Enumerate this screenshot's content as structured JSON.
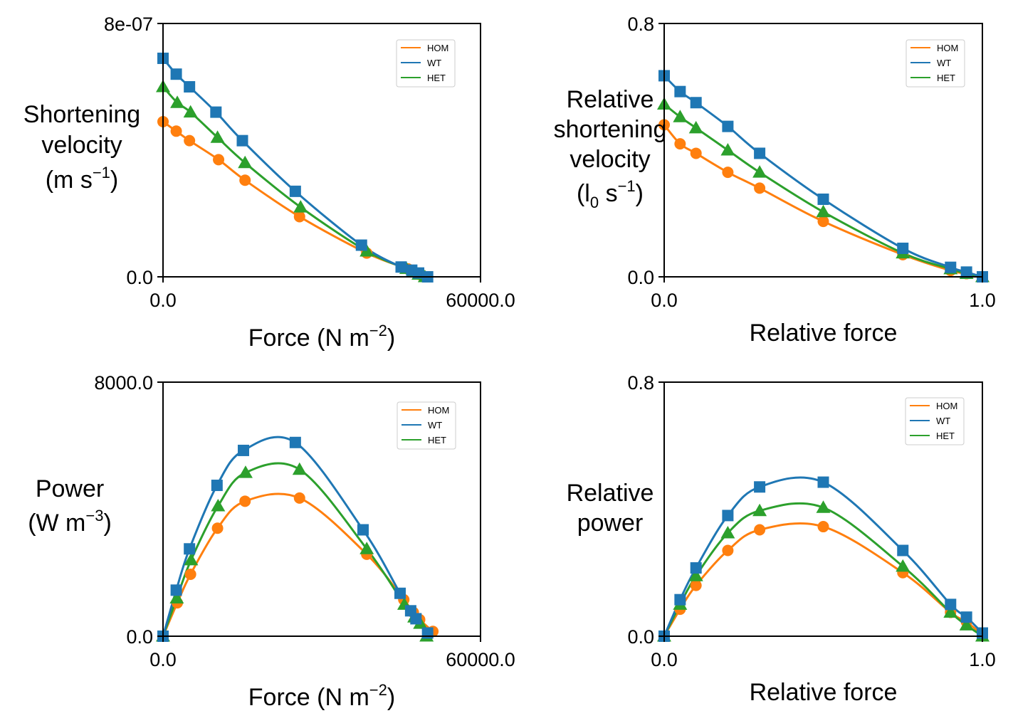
{
  "colors": {
    "HOM": "#ff7f0e",
    "WT": "#1f77b4",
    "HET": "#2ca02c",
    "axis": "#000000"
  },
  "markers": {
    "HOM": "circle",
    "WT": "square",
    "HET": "triangle"
  },
  "legend_position": "upper-right",
  "chart_data": [
    {
      "id": "p1",
      "type": "line",
      "xlabel": "Force (N m",
      "xlabel_sup": "−2",
      "xlabel_end": ")",
      "ylabel_lines": [
        "Shortening",
        "velocity"
      ],
      "ylabel_unit": "(m s",
      "ylabel_unit_sup": "−1",
      "ylabel_unit_end": ")",
      "xlim": [
        0,
        60000
      ],
      "ylim": [
        0,
        8e-07
      ],
      "xticks": [
        "0.0",
        "60000.0"
      ],
      "yticks": [
        "0.0",
        "8e-07"
      ],
      "series": [
        {
          "name": "HOM",
          "x": [
            0,
            2500,
            5000,
            10500,
            15500,
            25800,
            38500,
            46300,
            47400,
            48400,
            50000
          ],
          "y": [
            4.9e-07,
            4.6e-07,
            4.3e-07,
            3.7e-07,
            3.05e-07,
            1.9e-07,
            7.5e-08,
            2.5e-08,
            1.6e-08,
            8e-09,
            0
          ]
        },
        {
          "name": "WT",
          "x": [
            0,
            2500,
            5000,
            10000,
            15000,
            25000,
            37500,
            45000,
            47000,
            48300,
            50000
          ],
          "y": [
            6.9e-07,
            6.4e-07,
            6e-07,
            5.2e-07,
            4.3e-07,
            2.7e-07,
            1e-07,
            3.1e-08,
            2.1e-08,
            1.2e-08,
            0
          ]
        },
        {
          "name": "HET",
          "x": [
            0,
            2700,
            5200,
            10300,
            15500,
            26000,
            38500,
            46000,
            47300,
            48300,
            49500
          ],
          "y": [
            6e-07,
            5.5e-07,
            5.2e-07,
            4.4e-07,
            3.6e-07,
            2.2e-07,
            8.1e-08,
            2.6e-08,
            1.6e-08,
            8e-09,
            0
          ]
        }
      ]
    },
    {
      "id": "p2",
      "type": "line",
      "xlabel": "Relative force",
      "xlabel_sup": "",
      "xlabel_end": "",
      "ylabel_lines": [
        "Relative",
        "shortening",
        "velocity"
      ],
      "ylabel_unit": "(l",
      "ylabel_unit_sub": "0",
      "ylabel_unit_mid": " s",
      "ylabel_unit_sup": "−1",
      "ylabel_unit_end": ")",
      "xlim": [
        0,
        1
      ],
      "ylim": [
        0,
        0.8
      ],
      "xticks": [
        "0.0",
        "1.0"
      ],
      "yticks": [
        "0.0",
        "0.8"
      ],
      "series": [
        {
          "name": "HOM",
          "x": [
            0,
            0.05,
            0.1,
            0.2,
            0.3,
            0.5,
            0.75,
            0.9,
            0.95,
            1.0
          ],
          "y": [
            0.48,
            0.42,
            0.39,
            0.33,
            0.28,
            0.175,
            0.07,
            0.02,
            0.01,
            0
          ]
        },
        {
          "name": "WT",
          "x": [
            0,
            0.05,
            0.1,
            0.2,
            0.3,
            0.5,
            0.75,
            0.9,
            0.95,
            1.0
          ],
          "y": [
            0.635,
            0.585,
            0.55,
            0.475,
            0.39,
            0.245,
            0.09,
            0.03,
            0.015,
            0
          ]
        },
        {
          "name": "HET",
          "x": [
            0,
            0.05,
            0.1,
            0.2,
            0.3,
            0.5,
            0.75,
            0.9,
            0.95,
            1.0
          ],
          "y": [
            0.545,
            0.505,
            0.47,
            0.4,
            0.33,
            0.205,
            0.075,
            0.025,
            0.01,
            0
          ]
        }
      ]
    },
    {
      "id": "p3",
      "type": "line",
      "xlabel": "Force (N m",
      "xlabel_sup": "−2",
      "xlabel_end": ")",
      "ylabel_lines": [
        "Power"
      ],
      "ylabel_unit": "(W m",
      "ylabel_unit_sup": "−3",
      "ylabel_unit_end": ")",
      "xlim": [
        0,
        60000
      ],
      "ylim": [
        0,
        8000
      ],
      "xticks": [
        "0.0",
        "60000.0"
      ],
      "yticks": [
        "0.0",
        "8000.0"
      ],
      "series": [
        {
          "name": "HOM",
          "x": [
            0,
            2700,
            5200,
            10300,
            15500,
            25800,
            38500,
            45500,
            47300,
            48500,
            51000
          ],
          "y": [
            0,
            1050,
            1950,
            3400,
            4250,
            4350,
            2580,
            1150,
            750,
            520,
            150
          ]
        },
        {
          "name": "WT",
          "x": [
            0,
            2500,
            5000,
            10200,
            15200,
            25000,
            37800,
            44800,
            46800,
            47800,
            50000
          ],
          "y": [
            0,
            1450,
            2750,
            4750,
            5850,
            6100,
            3350,
            1350,
            800,
            550,
            100
          ]
        },
        {
          "name": "HET",
          "x": [
            0,
            2600,
            5300,
            10400,
            15600,
            25800,
            38500,
            45600,
            47500,
            48600,
            49800
          ],
          "y": [
            0,
            1200,
            2400,
            4100,
            5150,
            5250,
            2750,
            1000,
            600,
            400,
            0
          ]
        }
      ]
    },
    {
      "id": "p4",
      "type": "line",
      "xlabel": "Relative force",
      "xlabel_sup": "",
      "xlabel_end": "",
      "ylabel_lines": [
        "Relative",
        "power"
      ],
      "ylabel_unit": "",
      "ylabel_unit_sup": "",
      "ylabel_unit_end": "",
      "xlim": [
        0,
        1
      ],
      "ylim": [
        0,
        0.8
      ],
      "xticks": [
        "0.0",
        "1.0"
      ],
      "yticks": [
        "0.0",
        "0.8"
      ],
      "series": [
        {
          "name": "HOM",
          "x": [
            0,
            0.05,
            0.1,
            0.2,
            0.3,
            0.5,
            0.75,
            0.9,
            0.95,
            1.0
          ],
          "y": [
            0,
            0.085,
            0.16,
            0.27,
            0.335,
            0.345,
            0.2,
            0.075,
            0.045,
            0.005
          ]
        },
        {
          "name": "WT",
          "x": [
            0,
            0.05,
            0.1,
            0.2,
            0.3,
            0.5,
            0.75,
            0.9,
            0.95,
            1.0
          ],
          "y": [
            0,
            0.115,
            0.215,
            0.38,
            0.47,
            0.485,
            0.27,
            0.1,
            0.06,
            0.01
          ]
        },
        {
          "name": "HET",
          "x": [
            0,
            0.05,
            0.1,
            0.2,
            0.3,
            0.5,
            0.75,
            0.9,
            0.95,
            1.0
          ],
          "y": [
            0,
            0.1,
            0.19,
            0.325,
            0.395,
            0.405,
            0.22,
            0.075,
            0.035,
            0
          ]
        }
      ]
    }
  ],
  "legend_order": [
    "HOM",
    "WT",
    "HET"
  ]
}
